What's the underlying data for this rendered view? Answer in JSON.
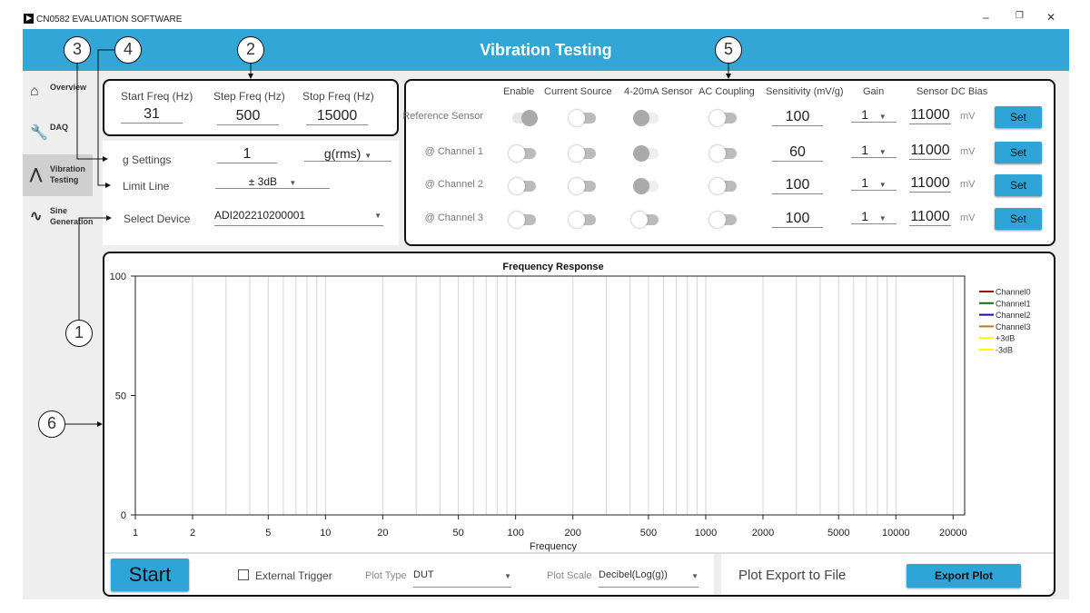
{
  "window": {
    "title": "CN0582 EVALUATION SOFTWARE",
    "minimize": "–",
    "restore": "❐",
    "close": "✕"
  },
  "header": {
    "title": "Vibration Testing"
  },
  "sidebar": {
    "items": [
      {
        "label1": "Overview",
        "label2": "",
        "icon": "home-icon",
        "glyph": "⌂"
      },
      {
        "label1": "DAQ",
        "label2": "",
        "icon": "wrench-icon",
        "glyph": "🔧"
      },
      {
        "label1": "Vibration",
        "label2": "Testing",
        "icon": "bell-curve-icon",
        "glyph": "⋀",
        "active": true
      },
      {
        "label1": "Sine",
        "label2": "Generation",
        "icon": "sine-wave-icon",
        "glyph": "∿"
      }
    ]
  },
  "freq": {
    "start_label": "Start Freq (Hz)",
    "start": "31",
    "step_label": "Step Freq (Hz)",
    "step": "500",
    "stop_label": "Stop Freq (Hz)",
    "stop": "15000"
  },
  "settings": {
    "g_label": "g Settings",
    "g_value": "1",
    "g_unit": "g(rms)",
    "limit_label": "Limit Line",
    "limit_value": "± 3dB",
    "device_label": "Select Device",
    "device_value": "ADI202210200001"
  },
  "sensors": {
    "headers": [
      "Enable",
      "Current Source",
      "4-20mA Sensor",
      "AC Coupling",
      "Sensitivity (mV/g)",
      "Gain",
      "Sensor DC Bias"
    ],
    "unit": "mV",
    "set_label": "Set",
    "rows": [
      {
        "name": "Reference Sensor",
        "enable": "on",
        "current": "off",
        "ma": "disabled-on",
        "ac": "off",
        "sensitivity": "100",
        "gain": "1",
        "bias": "11000"
      },
      {
        "name": "@ Channel 1",
        "enable": "off",
        "current": "off",
        "ma": "disabled-on",
        "ac": "off",
        "sensitivity": "60",
        "gain": "1",
        "bias": "11000"
      },
      {
        "name": "@ Channel 2",
        "enable": "off",
        "current": "off",
        "ma": "disabled-on",
        "ac": "off",
        "sensitivity": "100",
        "gain": "1",
        "bias": "11000"
      },
      {
        "name": "@ Channel 3",
        "enable": "off",
        "current": "off",
        "ma": "off",
        "ac": "off",
        "sensitivity": "100",
        "gain": "1",
        "bias": "11000"
      }
    ]
  },
  "chart_data": {
    "type": "line",
    "title": "Frequency Response",
    "xlabel": "Frequency",
    "ylabel": "",
    "xscale": "log",
    "xlim": [
      1,
      23000
    ],
    "ylim": [
      0,
      100
    ],
    "xticks": [
      1,
      2,
      5,
      10,
      20,
      50,
      100,
      200,
      500,
      1000,
      2000,
      5000,
      10000,
      20000
    ],
    "xtick_labels": [
      "1",
      "2",
      "5",
      "10",
      "20",
      "50",
      "100",
      "200",
      "500",
      "1000",
      "2000",
      "5000",
      "10000",
      "20000"
    ],
    "yticks": [
      0,
      50,
      100
    ],
    "ytick_labels": [
      "0",
      "50",
      "100"
    ],
    "grid": "vertical",
    "legend_placement": "right",
    "series": [
      {
        "name": "Channel0",
        "color": "#a01010",
        "values": []
      },
      {
        "name": "Channel1",
        "color": "#107010",
        "values": []
      },
      {
        "name": "Channel2",
        "color": "#1010a0",
        "values": []
      },
      {
        "name": "Channel3",
        "color": "#c07800",
        "values": []
      },
      {
        "name": "+3dB",
        "color": "#ffff00",
        "values": []
      },
      {
        "name": "-3dB",
        "color": "#ffff00",
        "values": []
      }
    ]
  },
  "bottom": {
    "start": "Start",
    "ext_trigger": "External Trigger",
    "plot_type_label": "Plot Type",
    "plot_type": "DUT",
    "plot_scale_label": "Plot Scale",
    "plot_scale": "Decibel(Log(g))",
    "export_label": "Plot Export to File",
    "export_button": "Export Plot"
  },
  "callouts": [
    "1",
    "2",
    "3",
    "4",
    "5",
    "6"
  ],
  "colors": {
    "accent": "#33a6d8"
  }
}
